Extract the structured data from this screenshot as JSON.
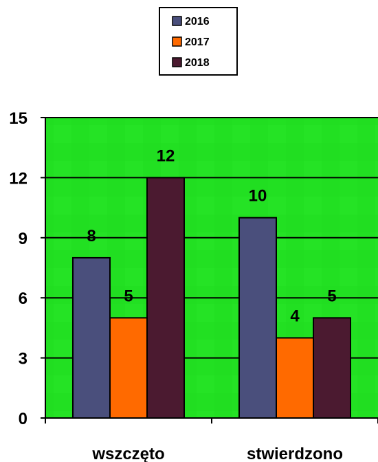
{
  "chart_data": {
    "type": "bar",
    "categories": [
      "wszczęto",
      "stwierdzono"
    ],
    "series": [
      {
        "name": "2016",
        "values": [
          8,
          10
        ],
        "color": "#4A4F7C"
      },
      {
        "name": "2017",
        "values": [
          5,
          4
        ],
        "color": "#FF6A00"
      },
      {
        "name": "2018",
        "values": [
          12,
          5
        ],
        "color": "#4B1A30"
      }
    ],
    "y_ticks": [
      "0",
      "3",
      "6",
      "9",
      "12",
      "15"
    ],
    "ylim": [
      0,
      15
    ],
    "grid": true,
    "legend_position": "top-center",
    "plot_background": "#22E022",
    "data_labels": true
  }
}
